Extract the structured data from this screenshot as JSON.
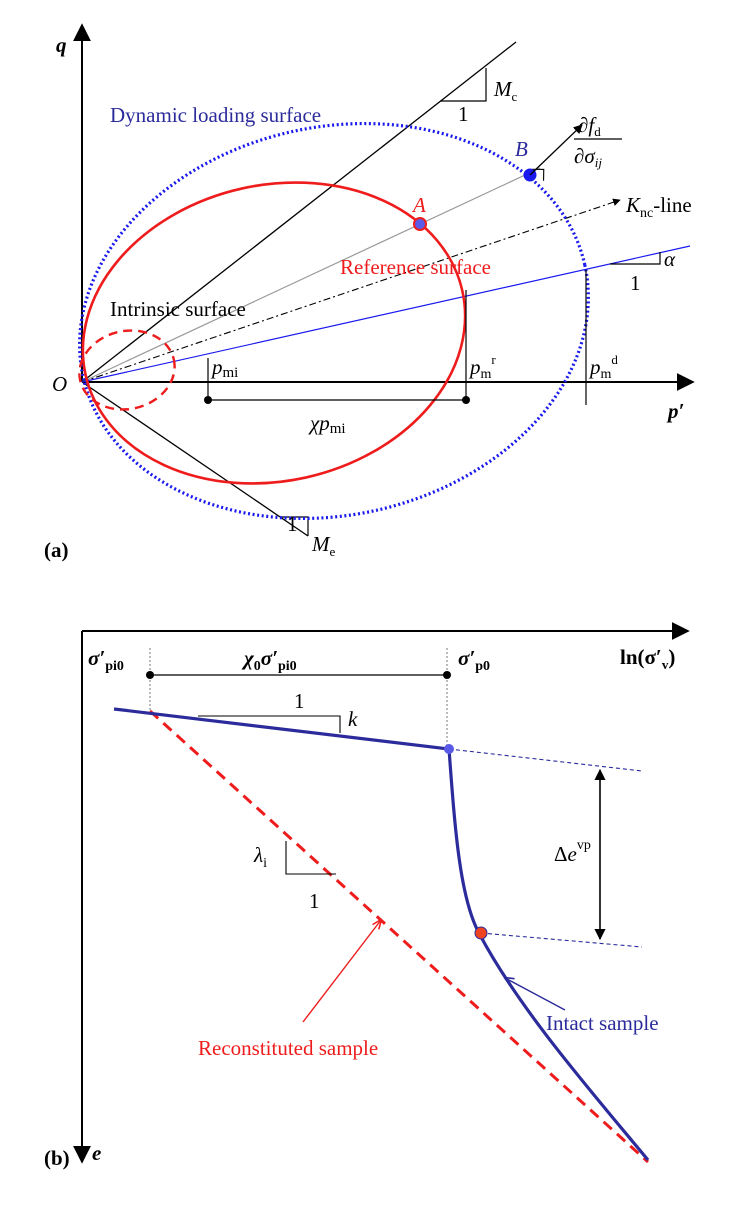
{
  "panel_a": {
    "panel_label": "(a)",
    "axis_q": "q",
    "axis_p": "p′",
    "origin": "O",
    "dynamic_surface": "Dynamic loading surface",
    "reference_surface": "Reference surface",
    "intrinsic_surface": "Intrinsic surface",
    "point_a": "A",
    "point_b": "B",
    "knc_k": "K",
    "knc_sub": "nc",
    "knc_suffix": "-line",
    "mc_m": "M",
    "mc_sub": "c",
    "mc_one": "1",
    "me_m": "M",
    "me_sub": "e",
    "me_one": "1",
    "alpha": "α",
    "alpha_one": "1",
    "pmi_p": "p",
    "pmi_sub": "mi",
    "pmr_p": "p",
    "pmr_sub": "m",
    "pmr_sup": "r",
    "pmd_p": "p",
    "pmd_sub": "m",
    "pmd_sup": "d",
    "chi_chi": "χ",
    "chi_p": "p",
    "chi_sub": "mi",
    "grad_num_d": "∂",
    "grad_num_f": "f",
    "grad_num_sub": "d",
    "grad_den_d": "∂",
    "grad_den_sigma": "σ",
    "grad_den_sub": "ij"
  },
  "panel_b": {
    "panel_label": "(b)",
    "axis_x": "ln(σ′",
    "axis_x_sub": "v",
    "axis_x_close": ")",
    "axis_e": "e",
    "spi0": "σ′",
    "spi0_sub": "pi0",
    "chi0": "χ",
    "chi0_sub": "0",
    "chi0_sigma": "σ′",
    "chi0_sigma_sub": "pi0",
    "sp0": "σ′",
    "sp0_sub": "p0",
    "k_one": "1",
    "k": "k",
    "lambda": "λ",
    "lambda_sub": "i",
    "lambda_one": "1",
    "delta": "Δ",
    "delta_e": "e",
    "delta_sup": "vp",
    "intact": "Intact sample",
    "reconstituted": "Reconstituted sample"
  },
  "colors": {
    "red": "#ee1c1c",
    "blue": "#1a1aee",
    "navy": "#2b2b9c",
    "gray": "#9a9a9a",
    "black": "#000000"
  }
}
